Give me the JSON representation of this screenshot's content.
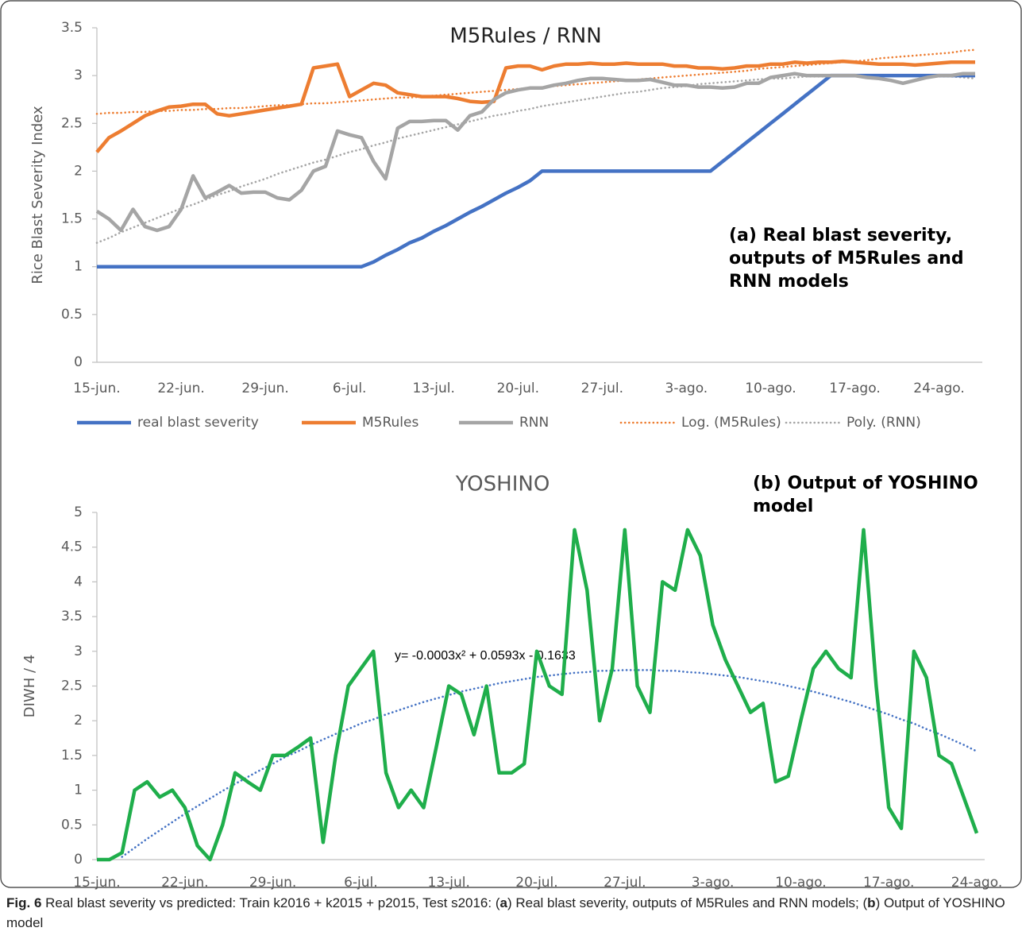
{
  "chart_data": [
    {
      "type": "line",
      "title": "M5Rules / RNN",
      "y_label": "Rice Blast Severity Index",
      "annotation": "(a) Real blast severity, outputs of M5Rules and RNN models",
      "legend": "bottom",
      "categories": [
        "15-jun.",
        null,
        null,
        null,
        null,
        null,
        null,
        "22-jun.",
        null,
        null,
        null,
        null,
        null,
        null,
        "29-jun.",
        null,
        null,
        null,
        null,
        null,
        null,
        "6-jul.",
        null,
        null,
        null,
        null,
        null,
        null,
        "13-jul.",
        null,
        null,
        null,
        null,
        null,
        null,
        "20-jul.",
        null,
        null,
        null,
        null,
        null,
        null,
        "27-jul.",
        null,
        null,
        null,
        null,
        null,
        null,
        "3-ago.",
        null,
        null,
        null,
        null,
        null,
        null,
        "10-ago.",
        null,
        null,
        null,
        null,
        null,
        null,
        "17-ago.",
        null,
        null,
        null,
        null,
        null,
        null,
        "24-ago.",
        null,
        null,
        null
      ],
      "ylim": [
        0,
        3.5
      ],
      "yticks": [
        0,
        0.5,
        1,
        1.5,
        2,
        2.5,
        3,
        3.5
      ],
      "series": [
        {
          "name": "real blast severity",
          "color": "#4472c4",
          "line_style": "solid",
          "values": [
            1,
            1,
            1,
            1,
            1,
            1,
            1,
            1,
            1,
            1,
            1,
            1,
            1,
            1,
            1,
            1,
            1,
            1,
            1,
            1,
            1,
            1,
            1,
            1.05,
            1.12,
            1.18,
            1.25,
            1.3,
            1.37,
            1.43,
            1.5,
            1.57,
            1.63,
            1.7,
            1.77,
            1.83,
            1.9,
            2,
            2,
            2,
            2,
            2,
            2,
            2,
            2,
            2,
            2,
            2,
            2,
            2,
            2,
            2,
            2.1,
            2.2,
            2.3,
            2.4,
            2.5,
            2.6,
            2.7,
            2.8,
            2.9,
            3,
            3,
            3,
            3,
            3,
            3,
            3,
            3,
            3,
            3,
            3,
            3,
            3
          ]
        },
        {
          "name": "M5Rules",
          "color": "#ed7d31",
          "line_style": "solid",
          "values": [
            2.2,
            2.35,
            2.42,
            2.5,
            2.58,
            2.63,
            2.67,
            2.68,
            2.7,
            2.7,
            2.6,
            2.58,
            2.6,
            2.62,
            2.64,
            2.66,
            2.68,
            2.7,
            3.08,
            3.1,
            3.12,
            2.78,
            2.85,
            2.92,
            2.9,
            2.82,
            2.8,
            2.78,
            2.78,
            2.78,
            2.76,
            2.73,
            2.72,
            2.73,
            3.08,
            3.1,
            3.1,
            3.06,
            3.1,
            3.12,
            3.12,
            3.13,
            3.12,
            3.12,
            3.13,
            3.12,
            3.12,
            3.12,
            3.1,
            3.1,
            3.08,
            3.08,
            3.07,
            3.08,
            3.1,
            3.1,
            3.12,
            3.12,
            3.14,
            3.13,
            3.14,
            3.14,
            3.15,
            3.14,
            3.13,
            3.12,
            3.12,
            3.12,
            3.11,
            3.12,
            3.13,
            3.14,
            3.14,
            3.14
          ]
        },
        {
          "name": "RNN",
          "color": "#a5a5a5",
          "line_style": "solid",
          "values": [
            1.58,
            1.5,
            1.38,
            1.6,
            1.42,
            1.38,
            1.42,
            1.6,
            1.95,
            1.72,
            1.78,
            1.85,
            1.77,
            1.78,
            1.78,
            1.72,
            1.7,
            1.8,
            2,
            2.05,
            2.42,
            2.38,
            2.35,
            2.1,
            1.92,
            2.45,
            2.52,
            2.52,
            2.53,
            2.53,
            2.43,
            2.58,
            2.62,
            2.75,
            2.82,
            2.85,
            2.87,
            2.87,
            2.9,
            2.92,
            2.95,
            2.97,
            2.97,
            2.96,
            2.95,
            2.95,
            2.96,
            2.93,
            2.9,
            2.9,
            2.88,
            2.88,
            2.87,
            2.88,
            2.92,
            2.92,
            2.98,
            3,
            3.02,
            3,
            3,
            3,
            3,
            3,
            2.98,
            2.97,
            2.95,
            2.92,
            2.95,
            2.98,
            3,
            3,
            3.02,
            3.02
          ]
        },
        {
          "name": "Log. (M5Rules)",
          "color": "#ed7d31",
          "line_style": "dotted",
          "values": [
            2.6,
            2.61,
            2.61,
            2.62,
            2.62,
            2.63,
            2.63,
            2.64,
            2.64,
            2.65,
            2.65,
            2.66,
            2.66,
            2.67,
            2.68,
            2.69,
            2.69,
            2.7,
            2.71,
            2.71,
            2.72,
            2.73,
            2.74,
            2.75,
            2.76,
            2.77,
            2.77,
            2.78,
            2.79,
            2.8,
            2.81,
            2.82,
            2.83,
            2.84,
            2.85,
            2.86,
            2.87,
            2.88,
            2.89,
            2.9,
            2.91,
            2.92,
            2.93,
            2.94,
            2.95,
            2.96,
            2.97,
            2.98,
            2.99,
            3,
            3.01,
            3.02,
            3.03,
            3.04,
            3.05,
            3.07,
            3.08,
            3.09,
            3.1,
            3.11,
            3.12,
            3.13,
            3.14,
            3.15,
            3.16,
            3.18,
            3.19,
            3.2,
            3.21,
            3.22,
            3.23,
            3.24,
            3.26,
            3.27
          ]
        },
        {
          "name": "Poly. (RNN)",
          "color": "#a5a5a5",
          "line_style": "dotted",
          "values": [
            1.25,
            1.3,
            1.36,
            1.41,
            1.46,
            1.51,
            1.56,
            1.61,
            1.65,
            1.7,
            1.75,
            1.79,
            1.84,
            1.88,
            1.92,
            1.97,
            2.01,
            2.05,
            2.09,
            2.12,
            2.16,
            2.2,
            2.23,
            2.27,
            2.3,
            2.34,
            2.37,
            2.4,
            2.43,
            2.46,
            2.49,
            2.52,
            2.55,
            2.58,
            2.6,
            2.63,
            2.65,
            2.68,
            2.7,
            2.72,
            2.74,
            2.76,
            2.78,
            2.8,
            2.82,
            2.83,
            2.85,
            2.87,
            2.88,
            2.89,
            2.91,
            2.92,
            2.93,
            2.94,
            2.95,
            2.96,
            2.97,
            2.97,
            2.98,
            2.99,
            2.99,
            2.99,
            3,
            3,
            3,
            3,
            3,
            3,
            3,
            2.99,
            2.99,
            2.99,
            2.98,
            2.97
          ]
        }
      ]
    },
    {
      "type": "line",
      "title": "YOSHINO",
      "y_label": "DIWH / 4",
      "annotation": "(b) Output of YOSHINO model",
      "equation": "y= -0.0003x² + 0.0593x - 0.1633",
      "categories": [
        "15-jun.",
        null,
        null,
        null,
        null,
        null,
        null,
        "22-jun.",
        null,
        null,
        null,
        null,
        null,
        null,
        "29-jun.",
        null,
        null,
        null,
        null,
        null,
        null,
        "6-jul.",
        null,
        null,
        null,
        null,
        null,
        null,
        "13-jul.",
        null,
        null,
        null,
        null,
        null,
        null,
        "20-jul.",
        null,
        null,
        null,
        null,
        null,
        null,
        "27-jul.",
        null,
        null,
        null,
        null,
        null,
        null,
        "3-ago.",
        null,
        null,
        null,
        null,
        null,
        null,
        "10-ago.",
        null,
        null,
        null,
        null,
        null,
        null,
        "17-ago.",
        null,
        null,
        null,
        null,
        null,
        null,
        "24-ago."
      ],
      "ylim": [
        0,
        5
      ],
      "yticks": [
        0,
        0.5,
        1,
        1.5,
        2,
        2.5,
        3,
        3.5,
        4,
        4.5,
        5
      ],
      "series": [
        {
          "color": "#1fae4b",
          "line_style": "solid",
          "values": [
            0,
            0,
            0.1,
            1,
            1.12,
            0.9,
            1,
            0.75,
            0.2,
            0,
            0.5,
            1.25,
            1.12,
            1,
            1.5,
            1.5,
            1.62,
            1.75,
            0.25,
            1.5,
            2.5,
            2.75,
            3,
            1.25,
            0.75,
            1,
            0.75,
            1.62,
            2.5,
            2.38,
            1.8,
            2.5,
            1.25,
            1.25,
            1.38,
            3,
            2.5,
            2.38,
            4.75,
            3.88,
            2,
            2.75,
            4.75,
            2.5,
            2.12,
            4,
            3.88,
            4.75,
            4.38,
            3.38,
            2.88,
            2.5,
            2.12,
            2.25,
            1.12,
            1.2,
            2,
            2.75,
            3,
            2.75,
            2.62,
            4.75,
            2.5,
            0.75,
            0.45,
            3,
            2.62,
            1.5,
            1.38,
            0.88,
            0.38
          ]
        },
        {
          "color": "#4472c4",
          "line_style": "dotted",
          "values": [
            null,
            null,
            0.04,
            0.17,
            0.3,
            0.42,
            0.54,
            0.66,
            0.77,
            0.88,
            0.99,
            1.09,
            1.19,
            1.29,
            1.38,
            1.48,
            1.56,
            1.65,
            1.73,
            1.81,
            1.88,
            1.96,
            2.02,
            2.09,
            2.15,
            2.21,
            2.27,
            2.32,
            2.37,
            2.42,
            2.46,
            2.5,
            2.54,
            2.57,
            2.6,
            2.63,
            2.65,
            2.67,
            2.69,
            2.7,
            2.72,
            2.72,
            2.73,
            2.73,
            2.73,
            2.72,
            2.72,
            2.7,
            2.69,
            2.67,
            2.65,
            2.63,
            2.6,
            2.57,
            2.54,
            2.5,
            2.46,
            2.42,
            2.37,
            2.32,
            2.27,
            2.21,
            2.15,
            2.09,
            2.02,
            1.96,
            1.88,
            1.81,
            1.73,
            1.65,
            1.56
          ]
        }
      ]
    }
  ],
  "caption": {
    "label": "Fig. 6",
    "segments": [
      "Real blast severity vs predicted: Train k2016 + k2015 + p2015, Test s2016: (",
      "a",
      ") Real blast severity, outputs of M5Rules and RNN models; (",
      "b",
      ") Output of YOSHINO model"
    ]
  }
}
